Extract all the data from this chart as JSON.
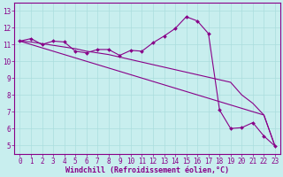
{
  "xlabel": "Windchill (Refroidissement éolien,°C)",
  "background_color": "#c8eeee",
  "grid_color": "#aadddd",
  "line_color": "#880088",
  "axis_color": "#880088",
  "x": [
    0,
    1,
    2,
    3,
    4,
    5,
    6,
    7,
    8,
    9,
    10,
    11,
    12,
    13,
    14,
    15,
    16,
    17,
    18,
    19,
    20,
    21,
    22,
    23
  ],
  "y_curve": [
    11.2,
    11.35,
    11.0,
    11.2,
    11.15,
    10.6,
    10.5,
    10.7,
    10.7,
    10.35,
    10.65,
    10.6,
    11.1,
    11.5,
    11.95,
    12.65,
    12.4,
    11.65,
    7.1,
    6.0,
    6.05,
    6.35,
    5.55,
    4.95
  ],
  "y_line_upper": [
    11.2,
    11.15,
    11.05,
    10.95,
    10.85,
    10.75,
    10.6,
    10.5,
    10.4,
    10.25,
    10.1,
    9.95,
    9.8,
    9.65,
    9.5,
    9.35,
    9.2,
    9.05,
    8.9,
    8.75,
    8.0,
    7.5,
    6.8,
    4.95
  ],
  "y_line_lower": [
    11.2,
    11.0,
    10.8,
    10.6,
    10.4,
    10.2,
    10.0,
    9.8,
    9.6,
    9.4,
    9.2,
    9.0,
    8.8,
    8.6,
    8.4,
    8.2,
    8.0,
    7.8,
    7.6,
    7.4,
    7.2,
    7.0,
    6.8,
    4.95
  ],
  "ylim": [
    4.5,
    13.5
  ],
  "xlim": [
    -0.5,
    23.5
  ],
  "yticks": [
    5,
    6,
    7,
    8,
    9,
    10,
    11,
    12,
    13
  ],
  "font_size": 5.5,
  "xlabel_font_size": 6.0,
  "marker_size": 2.0,
  "line_width": 0.8
}
